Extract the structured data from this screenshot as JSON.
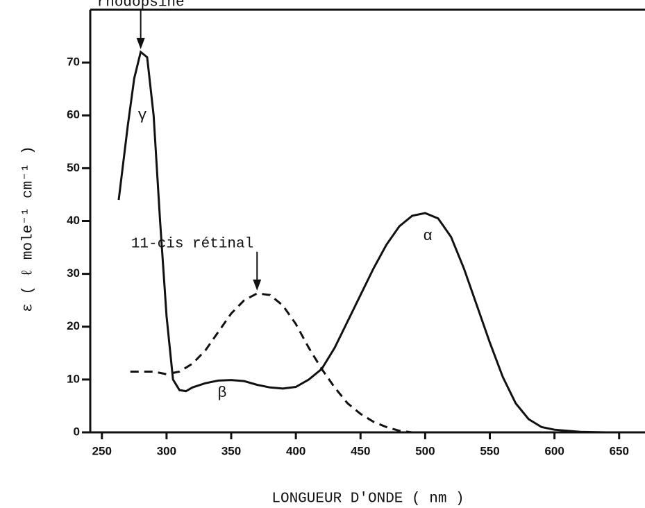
{
  "chart_data": {
    "type": "line",
    "xlabel": "LONGUEUR D'ONDE ( nm )",
    "ylabel": "ε ( ℓ mole⁻¹ cm⁻¹ )",
    "xlim": [
      241,
      670
    ],
    "ylim": [
      0,
      80
    ],
    "xticks": [
      250,
      300,
      350,
      400,
      450,
      500,
      550,
      600,
      650
    ],
    "yticks": [
      0,
      10,
      20,
      30,
      40,
      50,
      60,
      70
    ],
    "legend": false,
    "series": [
      {
        "name": "rhodopsine",
        "color": "#111111",
        "dash": false,
        "x": [
          263,
          270,
          275,
          280,
          285,
          290,
          295,
          300,
          305,
          310,
          315,
          320,
          330,
          340,
          350,
          360,
          370,
          380,
          390,
          400,
          410,
          420,
          430,
          440,
          450,
          460,
          470,
          480,
          490,
          500,
          510,
          520,
          530,
          540,
          550,
          560,
          570,
          580,
          590,
          600,
          620,
          640
        ],
        "values": [
          44,
          58,
          67,
          72,
          71,
          60,
          40,
          22,
          10,
          8,
          7.8,
          8.5,
          9.3,
          9.8,
          9.9,
          9.7,
          9,
          8.5,
          8.3,
          8.6,
          10,
          12,
          16,
          21,
          26,
          31,
          35.5,
          39,
          41,
          41.5,
          40.5,
          37,
          31,
          24,
          17,
          10.5,
          5.5,
          2.5,
          1,
          0.5,
          0.1,
          0
        ]
      },
      {
        "name": "11-cis rétinal",
        "color": "#111111",
        "dash": true,
        "x": [
          272,
          280,
          290,
          300,
          310,
          320,
          330,
          340,
          350,
          360,
          370,
          380,
          390,
          400,
          410,
          420,
          430,
          440,
          450,
          460,
          470,
          480,
          490
        ],
        "values": [
          11.5,
          11.5,
          11.5,
          11,
          11.5,
          13,
          15.5,
          19,
          22.5,
          25,
          26.3,
          26,
          24,
          20.5,
          16,
          12,
          8.5,
          5.5,
          3.5,
          2,
          1,
          0.3,
          0
        ]
      }
    ],
    "annotations": [
      "γ",
      "β",
      "α"
    ]
  }
}
